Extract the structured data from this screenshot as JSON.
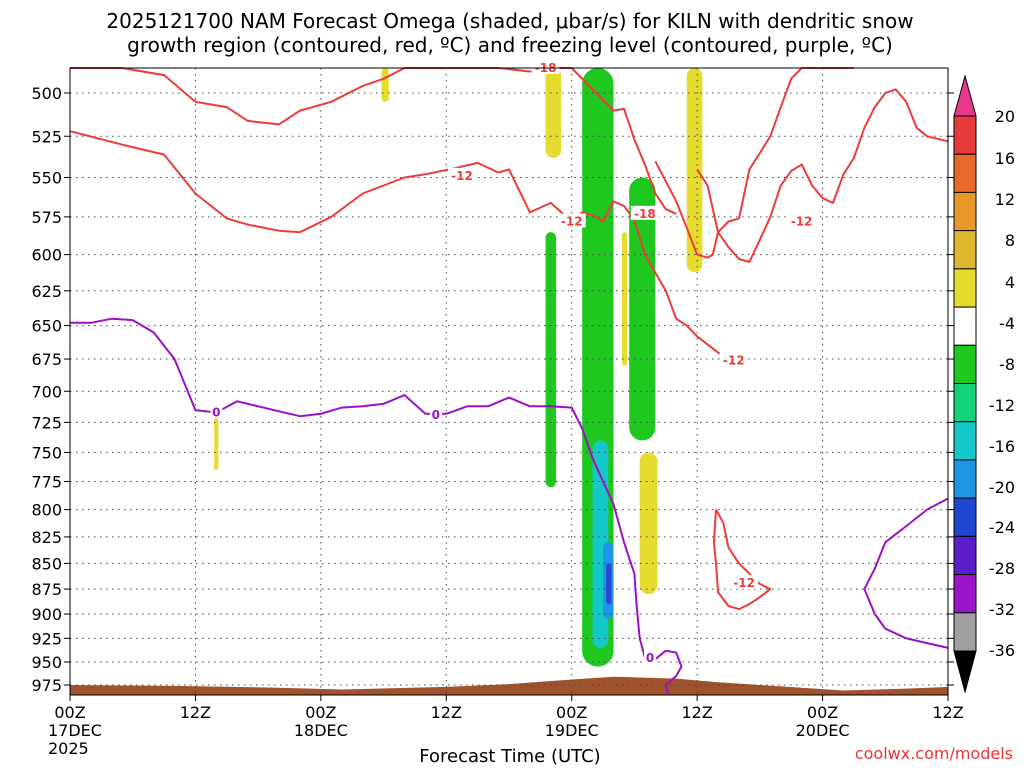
{
  "chart_data": {
    "type": "heatmap",
    "title_lines": [
      "2025121700 NAM Forecast Omega (shaded, μbar/s) for KILN with dendritic snow",
      "growth region (contoured, red, ºC) and freezing level (contoured, purple, ºC)"
    ],
    "xlabel": "Forecast Time (UTC)",
    "ylabel": "",
    "x_ticks": [
      {
        "hour": 0,
        "lines": [
          "00Z",
          "17DEC",
          "2025"
        ]
      },
      {
        "hour": 12,
        "lines": [
          "12Z"
        ]
      },
      {
        "hour": 24,
        "lines": [
          "00Z",
          "18DEC"
        ]
      },
      {
        "hour": 36,
        "lines": [
          "12Z"
        ]
      },
      {
        "hour": 48,
        "lines": [
          "00Z",
          "19DEC"
        ]
      },
      {
        "hour": 60,
        "lines": [
          "12Z"
        ]
      },
      {
        "hour": 72,
        "lines": [
          "00Z",
          "20DEC"
        ]
      },
      {
        "hour": 84,
        "lines": [
          "12Z"
        ]
      }
    ],
    "xlim_hours": [
      0,
      84
    ],
    "y_ticks": [
      500,
      525,
      550,
      575,
      600,
      625,
      650,
      675,
      700,
      725,
      750,
      775,
      800,
      825,
      850,
      875,
      900,
      925,
      950,
      975
    ],
    "ylim_hpa": [
      475,
      995
    ],
    "y_axis_type": "log",
    "grid": true,
    "colorbar": {
      "labels": [
        "20",
        "16",
        "12",
        "8",
        "4",
        "-4",
        "-8",
        "-12",
        "-16",
        "-20",
        "-24",
        "-28",
        "-32",
        "-36"
      ],
      "colors": [
        "#e8388a",
        "#e83c3c",
        "#e8682e",
        "#e89828",
        "#e0b830",
        "#e6dc30",
        "#ffffff",
        "#1ec81e",
        "#14d27a",
        "#14c8c8",
        "#1e96e6",
        "#1e46d2",
        "#5a1ec8",
        "#9a14c8",
        "#a0a0a0",
        "#000000"
      ]
    },
    "contour_labels": {
      "dgz_red": [
        "-18",
        "-12",
        "-12",
        "-18",
        "-12",
        "-12",
        "-12"
      ],
      "freezing_purple": [
        "0",
        "0",
        "0"
      ]
    },
    "series": [
      {
        "name": "dendritic snow growth region",
        "color": "#ee3a3a",
        "levels_c": [
          -12,
          -18
        ]
      },
      {
        "name": "freezing level",
        "color": "#9a10c8",
        "levels_c": [
          0
        ]
      }
    ],
    "shaded_regions": [
      {
        "omega": 8,
        "color": "#e6dc30",
        "t_hours": [
          29.8,
          30.5
        ],
        "p_hpa": [
          475,
          505
        ]
      },
      {
        "omega": 8,
        "color": "#e6dc30",
        "t_hours": [
          45.5,
          47.0
        ],
        "p_hpa": [
          475,
          538
        ]
      },
      {
        "omega": 8,
        "color": "#e6dc30",
        "t_hours": [
          13.8,
          14.2
        ],
        "p_hpa": [
          717,
          765
        ]
      },
      {
        "omega": 8,
        "color": "#e6dc30",
        "t_hours": [
          59.0,
          60.5
        ],
        "p_hpa": [
          477,
          612
        ]
      },
      {
        "omega": 8,
        "color": "#e6dc30",
        "t_hours": [
          52.8,
          53.3
        ],
        "p_hpa": [
          585,
          680
        ]
      },
      {
        "omega": 8,
        "color": "#e6dc30",
        "t_hours": [
          54.5,
          56.2
        ],
        "p_hpa": [
          750,
          880
        ]
      },
      {
        "omega": -8,
        "color": "#1ec81e",
        "t_hours": [
          45.5,
          46.5
        ],
        "p_hpa": [
          585,
          780
        ]
      },
      {
        "omega": -8,
        "color": "#1ec81e",
        "t_hours": [
          49.0,
          52.0
        ],
        "p_hpa": [
          475,
          955
        ]
      },
      {
        "omega": -8,
        "color": "#1ec81e",
        "t_hours": [
          53.5,
          56.0
        ],
        "p_hpa": [
          550,
          740
        ]
      },
      {
        "omega": -12,
        "color": "#14c8c8",
        "t_hours": [
          50.0,
          51.5
        ],
        "p_hpa": [
          740,
          935
        ]
      },
      {
        "omega": -16,
        "color": "#1e96e6",
        "t_hours": [
          51.0,
          52.0
        ],
        "p_hpa": [
          830,
          905
        ]
      },
      {
        "omega": -24,
        "color": "#2846d2",
        "t_hours": [
          51.3,
          51.8
        ],
        "p_hpa": [
          850,
          890
        ]
      }
    ],
    "dgz_contours": [
      {
        "level": -12,
        "points": [
          [
            0,
            522
          ],
          [
            5,
            530
          ],
          [
            9,
            536
          ],
          [
            12,
            560
          ],
          [
            15,
            576
          ],
          [
            17,
            580
          ],
          [
            20,
            584
          ],
          [
            22,
            585
          ],
          [
            25,
            575
          ],
          [
            28,
            560
          ],
          [
            30,
            555
          ],
          [
            32,
            550
          ],
          [
            34,
            548
          ],
          [
            37,
            544
          ],
          [
            39,
            541
          ],
          [
            41,
            547
          ],
          [
            42,
            545
          ],
          [
            44,
            572
          ],
          [
            46,
            566
          ],
          [
            48,
            578
          ],
          [
            49,
            572
          ],
          [
            50,
            574
          ],
          [
            51,
            578
          ],
          [
            52,
            565
          ],
          [
            53,
            568
          ],
          [
            54,
            577
          ],
          [
            55,
            600
          ],
          [
            57,
            625
          ],
          [
            58,
            645
          ],
          [
            59,
            650
          ],
          [
            60,
            658
          ],
          [
            62,
            670
          ],
          [
            63,
            675
          ]
        ]
      },
      {
        "level": -18,
        "points": [
          [
            0,
            478
          ],
          [
            5,
            480
          ],
          [
            9,
            490
          ],
          [
            12,
            505
          ],
          [
            15,
            508
          ],
          [
            17,
            516
          ],
          [
            20,
            518
          ],
          [
            22,
            510
          ],
          [
            25,
            505
          ],
          [
            28,
            496
          ],
          [
            30,
            492
          ],
          [
            32,
            479
          ],
          [
            37,
            480
          ],
          [
            41,
            483
          ],
          [
            44,
            488
          ],
          [
            46,
            484
          ],
          [
            48,
            484
          ],
          [
            50,
            498
          ],
          [
            52,
            510
          ],
          [
            53,
            509
          ],
          [
            54,
            527
          ],
          [
            55,
            542
          ],
          [
            56,
            560
          ],
          [
            57,
            570
          ],
          [
            58,
            573
          ]
        ]
      },
      {
        "level": -18,
        "points": [
          [
            56,
            540
          ],
          [
            58,
            565
          ],
          [
            59,
            582
          ],
          [
            60,
            600
          ],
          [
            61,
            602
          ],
          [
            61.5,
            600
          ],
          [
            62,
            585
          ],
          [
            63,
            578
          ],
          [
            64,
            576
          ],
          [
            65,
            545
          ],
          [
            66,
            535
          ],
          [
            67,
            525
          ],
          [
            68,
            508
          ],
          [
            69,
            492
          ],
          [
            70,
            478
          ],
          [
            72,
            478
          ],
          [
            74,
            478
          ],
          [
            75,
            475
          ]
        ]
      },
      {
        "level": -12,
        "points": [
          [
            60,
            545
          ],
          [
            61,
            555
          ],
          [
            62,
            585
          ],
          [
            63,
            595
          ],
          [
            64,
            603
          ],
          [
            65,
            605
          ],
          [
            66,
            590
          ],
          [
            67,
            575
          ],
          [
            68,
            555
          ],
          [
            69,
            546
          ],
          [
            70,
            542
          ],
          [
            71,
            555
          ],
          [
            72,
            563
          ],
          [
            73,
            566
          ],
          [
            74,
            548
          ],
          [
            75,
            538
          ],
          [
            76,
            520
          ],
          [
            77,
            508
          ],
          [
            78,
            500
          ],
          [
            79,
            498
          ],
          [
            80,
            505
          ],
          [
            81,
            520
          ],
          [
            82,
            525
          ],
          [
            84,
            528
          ]
        ]
      },
      {
        "level": -12,
        "points": [
          [
            61.8,
            800
          ],
          [
            62.5,
            812
          ],
          [
            63,
            835
          ],
          [
            64,
            850
          ],
          [
            65,
            860
          ],
          [
            66,
            870
          ],
          [
            67,
            875
          ],
          [
            66,
            883
          ],
          [
            65,
            890
          ],
          [
            64,
            895
          ],
          [
            63,
            892
          ],
          [
            62,
            878
          ],
          [
            61.8,
            850
          ],
          [
            61.6,
            830
          ],
          [
            61.8,
            800
          ]
        ]
      }
    ],
    "freezing_contours": [
      {
        "level": 0,
        "points": [
          [
            0,
            648
          ],
          [
            2,
            648
          ],
          [
            4,
            645
          ],
          [
            6,
            646
          ],
          [
            8,
            655
          ],
          [
            10,
            675
          ],
          [
            12,
            715
          ],
          [
            14,
            717
          ],
          [
            16,
            708
          ],
          [
            18,
            712
          ],
          [
            20,
            716
          ],
          [
            22,
            720
          ],
          [
            24,
            718
          ],
          [
            26,
            713
          ],
          [
            28,
            712
          ],
          [
            30,
            710
          ],
          [
            32,
            703
          ],
          [
            34,
            718
          ],
          [
            36,
            718
          ],
          [
            38,
            712
          ],
          [
            40,
            712
          ],
          [
            42,
            705
          ],
          [
            44,
            712
          ],
          [
            46,
            712
          ],
          [
            48,
            713
          ],
          [
            49,
            730
          ],
          [
            50,
            755
          ],
          [
            51,
            775
          ],
          [
            52,
            795
          ],
          [
            53,
            830
          ],
          [
            54,
            860
          ],
          [
            54.2,
            890
          ],
          [
            54.5,
            925
          ],
          [
            55,
            945
          ],
          [
            56,
            947
          ],
          [
            57,
            938
          ],
          [
            58,
            940
          ],
          [
            58.5,
            955
          ],
          [
            58,
            965
          ],
          [
            57,
            975
          ],
          [
            57.2,
            985
          ]
        ]
      },
      {
        "level": 0,
        "points": [
          [
            84,
            790
          ],
          [
            82,
            800
          ],
          [
            80,
            815
          ],
          [
            78,
            830
          ],
          [
            77,
            855
          ],
          [
            76,
            875
          ],
          [
            77,
            900
          ],
          [
            78,
            915
          ],
          [
            80,
            925
          ],
          [
            82,
            930
          ],
          [
            84,
            935
          ]
        ]
      }
    ],
    "terrain": {
      "color": "#a0522d",
      "surface_p_hpa": [
        [
          0,
          975
        ],
        [
          10,
          976
        ],
        [
          20,
          978
        ],
        [
          26,
          980
        ],
        [
          36,
          977
        ],
        [
          42,
          974
        ],
        [
          48,
          969
        ],
        [
          52,
          966
        ],
        [
          58,
          968
        ],
        [
          62,
          972
        ],
        [
          66,
          975
        ],
        [
          70,
          978
        ],
        [
          74,
          981
        ],
        [
          80,
          979
        ],
        [
          84,
          977
        ]
      ]
    },
    "credit": "coolwx.com/models"
  }
}
